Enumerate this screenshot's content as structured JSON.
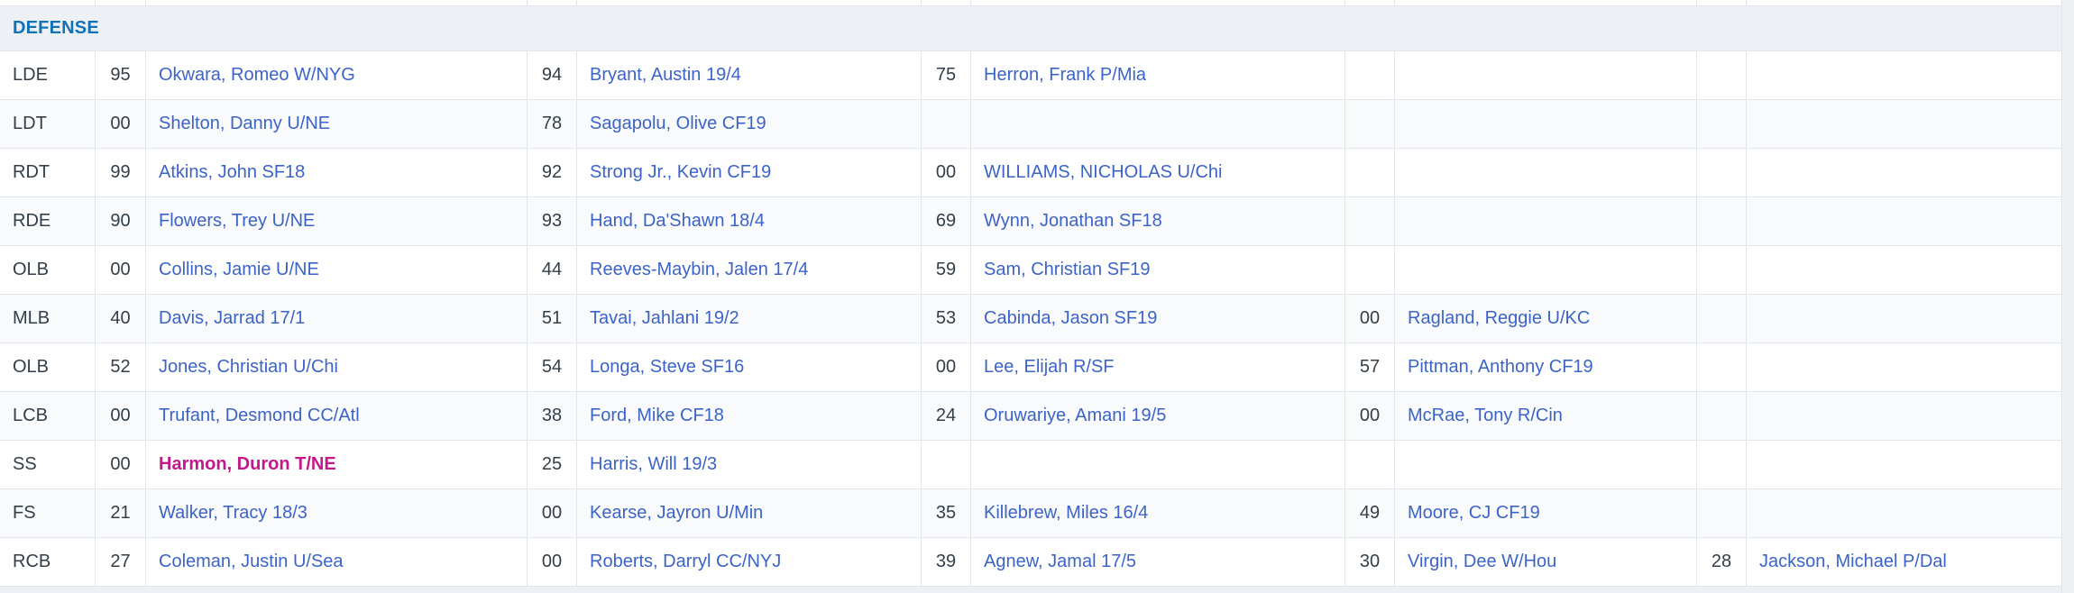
{
  "section": {
    "title": "DEFENSE"
  },
  "colors": {
    "header_text": "#1371b5",
    "header_bg": "#edf1f6",
    "link_blue": "#3c63c7",
    "dark_text": "#333e49",
    "highlight_pink": "#c4188a",
    "border": "#e0e6ec",
    "row_alt_bg": "#f8fafc",
    "row_bg": "#ffffff",
    "page_bg": "#eef1f4"
  },
  "rows": [
    {
      "position": "LDE",
      "players": [
        {
          "number": "95",
          "name": "Okwara, Romeo W/NYG"
        },
        {
          "number": "94",
          "name": "Bryant, Austin 19/4"
        },
        {
          "number": "75",
          "name": "Herron, Frank P/Mia"
        },
        null,
        null
      ]
    },
    {
      "position": "LDT",
      "players": [
        {
          "number": "00",
          "name": "Shelton, Danny U/NE"
        },
        {
          "number": "78",
          "name": "Sagapolu, Olive CF19"
        },
        null,
        null,
        null
      ]
    },
    {
      "position": "RDT",
      "players": [
        {
          "number": "99",
          "name": "Atkins, John SF18"
        },
        {
          "number": "92",
          "name": "Strong Jr., Kevin CF19"
        },
        {
          "number": "00",
          "name": "WILLIAMS, NICHOLAS U/Chi"
        },
        null,
        null
      ]
    },
    {
      "position": "RDE",
      "players": [
        {
          "number": "90",
          "name": "Flowers, Trey U/NE"
        },
        {
          "number": "93",
          "name": "Hand, Da'Shawn 18/4"
        },
        {
          "number": "69",
          "name": "Wynn, Jonathan SF18"
        },
        null,
        null
      ]
    },
    {
      "position": "OLB",
      "players": [
        {
          "number": "00",
          "name": "Collins, Jamie U/NE"
        },
        {
          "number": "44",
          "name": "Reeves-Maybin, Jalen 17/4"
        },
        {
          "number": "59",
          "name": "Sam, Christian SF19"
        },
        null,
        null
      ]
    },
    {
      "position": "MLB",
      "players": [
        {
          "number": "40",
          "name": "Davis, Jarrad 17/1"
        },
        {
          "number": "51",
          "name": "Tavai, Jahlani 19/2"
        },
        {
          "number": "53",
          "name": "Cabinda, Jason SF19"
        },
        {
          "number": "00",
          "name": "Ragland, Reggie U/KC"
        },
        null
      ]
    },
    {
      "position": "OLB",
      "players": [
        {
          "number": "52",
          "name": "Jones, Christian U/Chi"
        },
        {
          "number": "54",
          "name": "Longa, Steve SF16"
        },
        {
          "number": "00",
          "name": "Lee, Elijah R/SF"
        },
        {
          "number": "57",
          "name": "Pittman, Anthony CF19"
        },
        null
      ]
    },
    {
      "position": "LCB",
      "players": [
        {
          "number": "00",
          "name": "Trufant, Desmond CC/Atl"
        },
        {
          "number": "38",
          "name": "Ford, Mike CF18"
        },
        {
          "number": "24",
          "name": "Oruwariye, Amani 19/5"
        },
        {
          "number": "00",
          "name": "McRae, Tony R/Cin"
        },
        null
      ]
    },
    {
      "position": "SS",
      "players": [
        {
          "number": "00",
          "name": "Harmon, Duron T/NE",
          "highlight": true
        },
        {
          "number": "25",
          "name": "Harris, Will 19/3"
        },
        null,
        null,
        null
      ]
    },
    {
      "position": "FS",
      "players": [
        {
          "number": "21",
          "name": "Walker, Tracy 18/3"
        },
        {
          "number": "00",
          "name": "Kearse, Jayron U/Min"
        },
        {
          "number": "35",
          "name": "Killebrew, Miles 16/4"
        },
        {
          "number": "49",
          "name": "Moore, CJ CF19"
        },
        null
      ]
    },
    {
      "position": "RCB",
      "players": [
        {
          "number": "27",
          "name": "Coleman, Justin U/Sea"
        },
        {
          "number": "00",
          "name": "Roberts, Darryl CC/NYJ"
        },
        {
          "number": "39",
          "name": "Agnew, Jamal 17/5"
        },
        {
          "number": "30",
          "name": "Virgin, Dee W/Hou"
        },
        {
          "number": "28",
          "name": "Jackson, Michael P/Dal"
        }
      ]
    }
  ]
}
